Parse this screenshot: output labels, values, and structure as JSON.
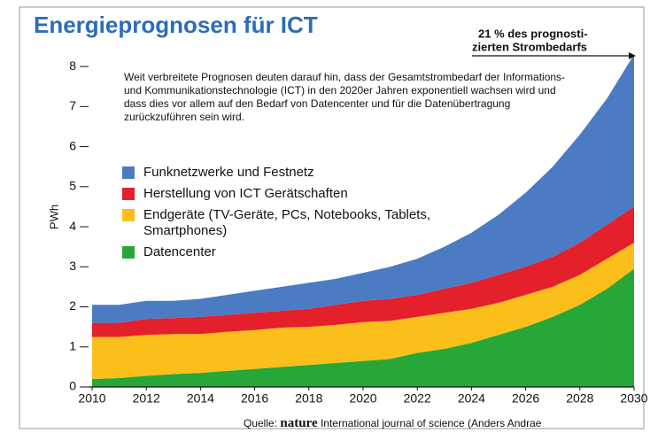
{
  "chart_data": {
    "type": "stacked_area",
    "title": "Energieprognosen für ICT",
    "annotation_lines": [
      "21 % des prognosti-",
      "zierten Strombedarfs"
    ],
    "description": "Weit verbreitete Prognosen deuten darauf hin, dass der Gesamtstrombedarf der Informations- und Kommunikationstechnologie (ICT) in den 2020er Jahren exponentiell wachsen wird und dass dies vor allem auf den Bedarf von Datencenter und für die Datenübertragung zurückzuführen sein wird.",
    "y_label": "PWh",
    "source": [
      "Quelle:",
      "nature",
      "International journal of science (Anders Andrae"
    ],
    "x": [
      2010,
      2011,
      2012,
      2013,
      2014,
      2015,
      2016,
      2017,
      2018,
      2019,
      2020,
      2021,
      2022,
      2023,
      2024,
      2025,
      2026,
      2027,
      2028,
      2029,
      2030
    ],
    "xlim": [
      2010,
      2030
    ],
    "xticks": [
      2010,
      2012,
      2014,
      2016,
      2018,
      2020,
      2022,
      2024,
      2026,
      2028,
      2030
    ],
    "ylim": [
      0,
      8.4
    ],
    "yticks": [
      0,
      1,
      2,
      3,
      4,
      5,
      6,
      7,
      8
    ],
    "series": [
      {
        "name": "Datencenter",
        "color": "#27a737",
        "values": [
          0.2,
          0.22,
          0.28,
          0.32,
          0.35,
          0.4,
          0.45,
          0.5,
          0.55,
          0.6,
          0.65,
          0.7,
          0.85,
          0.95,
          1.1,
          1.3,
          1.5,
          1.75,
          2.05,
          2.45,
          2.95
        ]
      },
      {
        "name": "Endgeräte (TV-Geräte, PCs, Notebooks, Tablets, Smartphones)",
        "color": "#fbbf1c",
        "values": [
          1.05,
          1.03,
          1.02,
          1.0,
          0.97,
          0.98,
          0.97,
          0.98,
          0.95,
          0.95,
          0.97,
          0.95,
          0.9,
          0.9,
          0.85,
          0.8,
          0.8,
          0.75,
          0.75,
          0.75,
          0.65
        ]
      },
      {
        "name": "Herstellung von ICT Gerätschaften",
        "color": "#e4202a",
        "values": [
          0.35,
          0.35,
          0.4,
          0.4,
          0.43,
          0.42,
          0.43,
          0.42,
          0.45,
          0.5,
          0.53,
          0.55,
          0.55,
          0.6,
          0.65,
          0.7,
          0.7,
          0.75,
          0.8,
          0.85,
          0.9
        ]
      },
      {
        "name": "Funknetzwerke und Festnetz",
        "color": "#4b7bc2",
        "values": [
          0.45,
          0.45,
          0.45,
          0.43,
          0.45,
          0.5,
          0.55,
          0.6,
          0.65,
          0.65,
          0.7,
          0.8,
          0.9,
          1.05,
          1.25,
          1.5,
          1.85,
          2.25,
          2.7,
          3.15,
          3.8
        ]
      }
    ]
  }
}
